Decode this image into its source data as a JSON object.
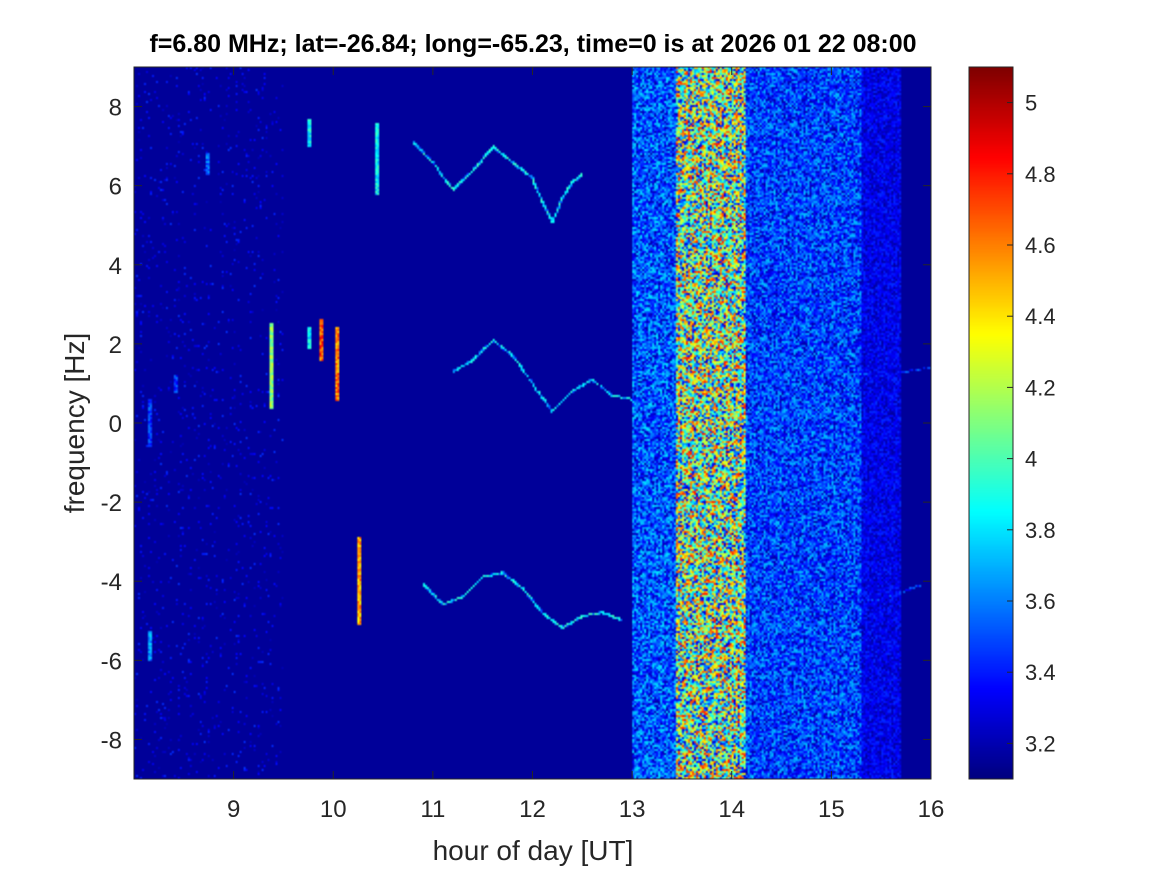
{
  "chart_data": {
    "type": "heatmap",
    "title": "f=6.80 MHz;  lat=-26.84; long=-65.23, time=0 is at 2026 01 22 08:00",
    "xlabel": "hour of day [UT]",
    "ylabel": "frequency [Hz]",
    "xlim": [
      8.0,
      16.0
    ],
    "ylim": [
      -9.0,
      9.0
    ],
    "xticks": [
      9,
      10,
      11,
      12,
      13,
      14,
      15,
      16
    ],
    "yticks": [
      -8,
      -6,
      -4,
      -2,
      0,
      2,
      4,
      6,
      8
    ],
    "colormap": "jet",
    "clim": [
      3.1,
      5.1
    ],
    "colorbar_ticks": [
      3.2,
      3.4,
      3.6,
      3.8,
      4,
      4.2,
      4.4,
      4.6,
      4.8,
      5
    ],
    "background_level": 3.15,
    "broadband_noise_bands": [
      {
        "x_start": 13.0,
        "x_end": 13.45,
        "level": 3.6
      },
      {
        "x_start": 13.45,
        "x_end": 14.15,
        "level": 4.3
      },
      {
        "x_start": 14.15,
        "x_end": 15.3,
        "level": 3.55
      },
      {
        "x_start": 15.3,
        "x_end": 15.7,
        "level": 3.35
      }
    ],
    "spectral_traces": [
      {
        "x": [
          10.8,
          11.0,
          11.2,
          11.4,
          11.6,
          11.8,
          12.0,
          12.1,
          12.2,
          12.3,
          12.4,
          12.5
        ],
        "y": [
          7.1,
          6.6,
          5.9,
          6.4,
          7.0,
          6.6,
          6.2,
          5.6,
          5.1,
          5.7,
          6.1,
          6.3
        ],
        "level": 3.8
      },
      {
        "x": [
          11.2,
          11.4,
          11.6,
          11.8,
          12.0,
          12.2,
          12.4,
          12.6,
          12.8,
          13.0
        ],
        "y": [
          1.3,
          1.6,
          2.1,
          1.7,
          1.0,
          0.3,
          0.8,
          1.1,
          0.7,
          0.6
        ],
        "level": 3.75
      },
      {
        "x": [
          13.5,
          14.0,
          14.5,
          15.0,
          15.5,
          16.0
        ],
        "y": [
          1.2,
          1.3,
          1.4,
          1.3,
          1.2,
          1.4
        ],
        "level": 3.45
      },
      {
        "x": [
          10.9,
          11.1,
          11.3,
          11.5,
          11.7,
          11.9,
          12.1,
          12.3,
          12.5,
          12.7,
          12.9
        ],
        "y": [
          -4.1,
          -4.6,
          -4.4,
          -3.9,
          -3.8,
          -4.2,
          -4.8,
          -5.2,
          -4.9,
          -4.8,
          -5.0
        ],
        "level": 3.8
      },
      {
        "x": [
          14.5,
          15.0,
          15.5,
          15.9
        ],
        "y": [
          -4.3,
          -4.5,
          -4.5,
          -4.1
        ],
        "level": 3.4
      }
    ],
    "vertical_streaks": [
      {
        "x": 8.15,
        "y": [
          -0.6,
          0.6
        ],
        "level": 3.6
      },
      {
        "x": 8.15,
        "y": [
          -6.0,
          -5.3
        ],
        "level": 3.8
      },
      {
        "x": 8.4,
        "y": [
          0.8,
          1.2
        ],
        "level": 3.6
      },
      {
        "x": 8.72,
        "y": [
          6.3,
          6.8
        ],
        "level": 3.7
      },
      {
        "x": 9.37,
        "y": [
          0.4,
          2.5
        ],
        "level": 4.3
      },
      {
        "x": 9.74,
        "y": [
          7.0,
          7.7
        ],
        "level": 4.0
      },
      {
        "x": 9.74,
        "y": [
          1.9,
          2.4
        ],
        "level": 4.0
      },
      {
        "x": 9.87,
        "y": [
          1.6,
          2.6
        ],
        "level": 4.9
      },
      {
        "x": 10.02,
        "y": [
          0.6,
          2.4
        ],
        "level": 4.8
      },
      {
        "x": 10.25,
        "y": [
          -5.1,
          -2.9
        ],
        "level": 4.7
      },
      {
        "x": 10.42,
        "y": [
          5.8,
          7.6
        ],
        "level": 4.0
      }
    ]
  },
  "colors": {
    "background": "#ffffff",
    "axis": "#262626"
  }
}
